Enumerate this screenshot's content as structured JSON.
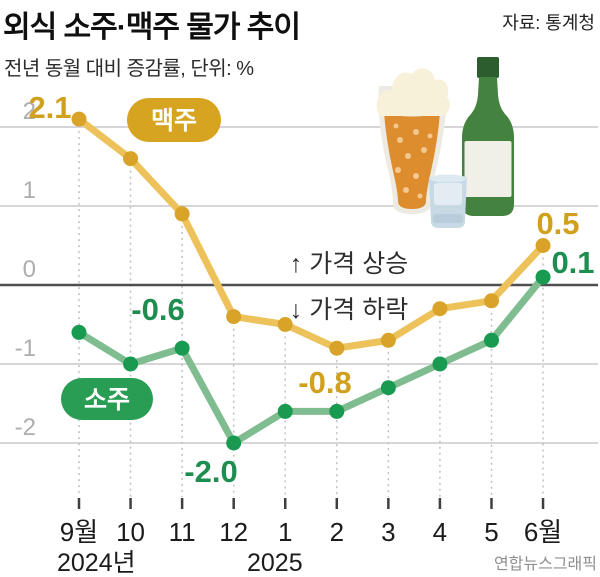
{
  "header": {
    "title": "외식 소주·맥주 물가 추이",
    "source": "자료: 통계청",
    "subtitle": "전년 동월 대비 증감률, 단위: %"
  },
  "annotations": {
    "price_up": "↑ 가격 상승",
    "price_down": "↓ 가격 하락"
  },
  "credit": "연합뉴스그래픽",
  "chart_data": {
    "type": "line",
    "title": "외식 소주·맥주 물가 추이",
    "subtitle": "전년 동월 대비 증감률, 단위: %",
    "unit": "%",
    "categories": [
      "9월",
      "10",
      "11",
      "12",
      "1",
      "2",
      "3",
      "4",
      "5",
      "6월"
    ],
    "year_labels": [
      "2024년",
      "2025"
    ],
    "series": [
      {
        "name": "맥주",
        "values": [
          2.1,
          1.6,
          0.9,
          -0.4,
          -0.5,
          -0.8,
          -0.7,
          -0.3,
          -0.2,
          0.5
        ],
        "line_color": "#EDC25A",
        "dot_color": "#D8A328",
        "label_color": "#D0A01E",
        "badge_color": "#D7A422"
      },
      {
        "name": "소주",
        "values": [
          -0.6,
          -1.0,
          -0.8,
          -2.0,
          -1.6,
          -1.6,
          -1.3,
          -1.0,
          -0.7,
          0.1
        ],
        "line_color": "#7FBC8F",
        "dot_color": "#189A50",
        "label_color": "#1D8E4F",
        "badge_color": "#2A9D55"
      }
    ],
    "point_labels": [
      {
        "series": 0,
        "index": 0,
        "text": "2.1"
      },
      {
        "series": 0,
        "index": 5,
        "text": "-0.8"
      },
      {
        "series": 0,
        "index": 9,
        "text": "0.5"
      },
      {
        "series": 1,
        "index": 0,
        "text": "-0.6"
      },
      {
        "series": 1,
        "index": 3,
        "text": "-2.0"
      },
      {
        "series": 1,
        "index": 9,
        "text": "0.1"
      }
    ],
    "y_ticks": [
      2,
      1,
      0,
      -1,
      -2
    ],
    "ylim": [
      -2.6,
      2.4
    ],
    "grid": true,
    "legend_position": "on-chart-badges",
    "grid_color": "#C9C9C9",
    "zero_line_color": "#4F4F4F",
    "axis_text_color": "#1b1b1b",
    "y_label_color": "#ADADAD",
    "credit_color": "#8F8F8F",
    "annotation_color": "#2e2e2e"
  }
}
